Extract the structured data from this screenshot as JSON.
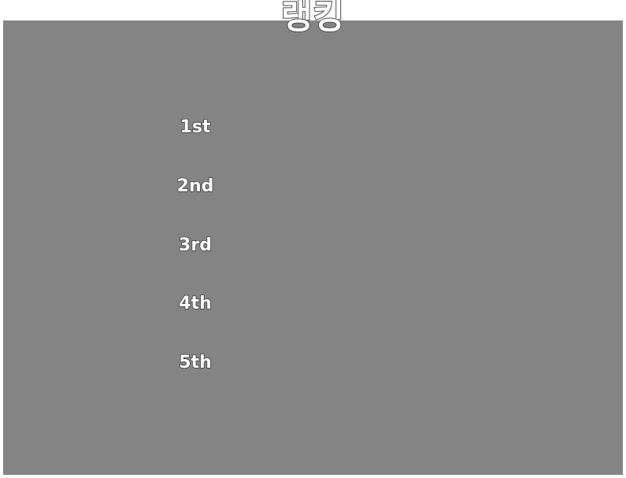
{
  "title": "랭킹",
  "colors": {
    "panel": "#848484",
    "text": "#ffffff",
    "outline": "#3a3a3a"
  },
  "ranks": [
    {
      "label": "1st"
    },
    {
      "label": "2nd"
    },
    {
      "label": "3rd"
    },
    {
      "label": "4th"
    },
    {
      "label": "5th"
    }
  ]
}
